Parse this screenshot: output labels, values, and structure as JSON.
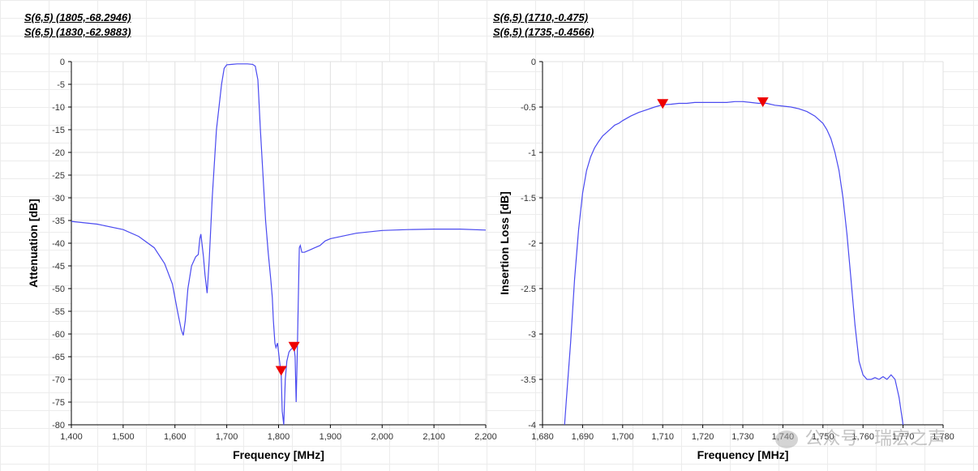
{
  "colors": {
    "trace": "#4a4af0",
    "marker": "#ee0000",
    "grid": "#e0e0e0",
    "axis": "#000000"
  },
  "watermark": {
    "text": "公众号 · 瑞宏之声",
    "icon": "wechat-logo-icon"
  },
  "left": {
    "markers": [
      "S(6,5) (1805,-68.2946)",
      "S(6,5) (1830,-62.9883)"
    ],
    "xticks": [
      "1,400",
      "1,500",
      "1,600",
      "1,700",
      "1,800",
      "1,900",
      "2,000",
      "2,100",
      "2,200"
    ],
    "yticks": [
      "0",
      "-5",
      "-10",
      "-15",
      "-20",
      "-25",
      "-30",
      "-35",
      "-40",
      "-45",
      "-50",
      "-55",
      "-60",
      "-65",
      "-70",
      "-75",
      "-80"
    ]
  },
  "right": {
    "markers": [
      "S(6,5) (1710,-0.475)",
      "S(6,5) (1735,-0.4566)"
    ],
    "xticks": [
      "1,680",
      "1,690",
      "1,700",
      "1,710",
      "1,720",
      "1,730",
      "1,740",
      "1,750",
      "1,760",
      "1,770",
      "1,780"
    ],
    "yticks": [
      "0",
      "-0.5",
      "-1",
      "-1.5",
      "-2",
      "-2.5",
      "-3",
      "-3.5",
      "-4"
    ]
  },
  "chart_data": [
    {
      "type": "line",
      "xlabel": "Frequency [MHz]",
      "ylabel": "Attenuation [dB]",
      "xlim": [
        1400,
        2200
      ],
      "ylim": [
        -80,
        0
      ],
      "grid": true,
      "series": [
        {
          "x": [
            1400,
            1450,
            1500,
            1530,
            1560,
            1580,
            1595,
            1605,
            1612,
            1616,
            1620,
            1625,
            1632,
            1640,
            1645,
            1648,
            1650,
            1652,
            1655,
            1658,
            1662,
            1666,
            1672,
            1680,
            1690,
            1695,
            1700,
            1710,
            1720,
            1730,
            1740,
            1750,
            1755,
            1760,
            1765,
            1770,
            1775,
            1780,
            1785,
            1788,
            1790,
            1793,
            1795,
            1798,
            1800,
            1803,
            1805,
            1807,
            1810,
            1813,
            1816,
            1820,
            1823,
            1826,
            1828,
            1830,
            1832,
            1834,
            1836,
            1840,
            1842,
            1845,
            1850,
            1860,
            1870,
            1880,
            1890,
            1900,
            1950,
            2000,
            2050,
            2100,
            2150,
            2200
          ],
          "y": [
            -35.2,
            -35.8,
            -37,
            -38.5,
            -41,
            -44.5,
            -49,
            -55,
            -59,
            -60.3,
            -57,
            -50,
            -45,
            -43,
            -42.5,
            -39,
            -38,
            -40,
            -43,
            -47,
            -51,
            -44,
            -30,
            -15,
            -5,
            -1.5,
            -0.7,
            -0.6,
            -0.5,
            -0.5,
            -0.5,
            -0.6,
            -1,
            -4,
            -15,
            -25,
            -35,
            -42,
            -48,
            -52,
            -57,
            -62,
            -63,
            -62,
            -64,
            -67,
            -68.29,
            -77,
            -80,
            -70,
            -66,
            -64,
            -63.5,
            -63.2,
            -63.1,
            -62.99,
            -65,
            -75,
            -65,
            -41,
            -40.5,
            -42,
            -42,
            -41.5,
            -41,
            -40.5,
            -39.5,
            -39,
            -37.8,
            -37.2,
            -37,
            -36.9,
            -36.9,
            -37.1
          ]
        }
      ],
      "markers": [
        {
          "x": 1805,
          "y": -68.2946
        },
        {
          "x": 1830,
          "y": -62.9883
        }
      ]
    },
    {
      "type": "line",
      "xlabel": "Frequency [MHz]",
      "ylabel": "Insertion Loss [dB]",
      "xlim": [
        1680,
        1780
      ],
      "ylim": [
        -4,
        0
      ],
      "grid": true,
      "series": [
        {
          "x": [
            1685.5,
            1686,
            1687,
            1688,
            1689,
            1690,
            1691,
            1692,
            1693,
            1694,
            1695,
            1696,
            1697,
            1698,
            1699,
            1700,
            1702,
            1704,
            1706,
            1708,
            1710,
            1712,
            1714,
            1716,
            1718,
            1720,
            1722,
            1724,
            1726,
            1728,
            1730,
            1732,
            1734,
            1735,
            1736,
            1738,
            1740,
            1742,
            1744,
            1746,
            1748,
            1750,
            1751,
            1752,
            1753,
            1754,
            1755,
            1756,
            1757,
            1758,
            1759,
            1760,
            1761,
            1762,
            1763,
            1764,
            1765,
            1766,
            1767,
            1768,
            1769,
            1770
          ],
          "y": [
            -4,
            -3.7,
            -3.1,
            -2.4,
            -1.85,
            -1.45,
            -1.2,
            -1.05,
            -0.95,
            -0.88,
            -0.82,
            -0.78,
            -0.74,
            -0.7,
            -0.68,
            -0.65,
            -0.6,
            -0.56,
            -0.53,
            -0.5,
            -0.475,
            -0.47,
            -0.46,
            -0.46,
            -0.45,
            -0.45,
            -0.45,
            -0.45,
            -0.45,
            -0.44,
            -0.44,
            -0.45,
            -0.46,
            -0.457,
            -0.46,
            -0.48,
            -0.49,
            -0.5,
            -0.52,
            -0.55,
            -0.6,
            -0.68,
            -0.75,
            -0.85,
            -1.0,
            -1.2,
            -1.5,
            -1.9,
            -2.4,
            -2.9,
            -3.3,
            -3.45,
            -3.5,
            -3.5,
            -3.48,
            -3.5,
            -3.47,
            -3.5,
            -3.45,
            -3.5,
            -3.7,
            -4
          ]
        }
      ],
      "markers": [
        {
          "x": 1710,
          "y": -0.475
        },
        {
          "x": 1735,
          "y": -0.4566
        }
      ]
    }
  ]
}
